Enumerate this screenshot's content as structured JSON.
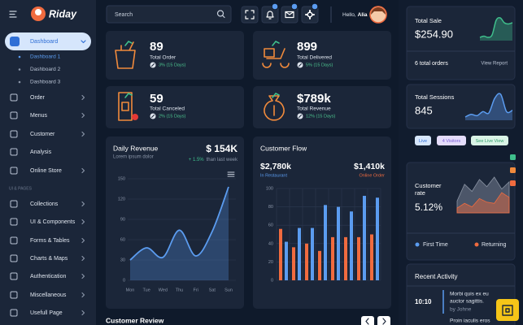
{
  "sidebar": {
    "logo": "Riday",
    "menu": [
      {
        "label": "Dashboard",
        "children": [
          "Dashboard 1",
          "Dashboard 2",
          "Dashboard 3"
        ],
        "has_submenu": true
      },
      {
        "label": "Order",
        "has_submenu": true
      },
      {
        "label": "Menus",
        "has_submenu": true
      },
      {
        "label": "Customer",
        "has_submenu": true
      },
      {
        "label": "Analysis",
        "has_submenu": false
      },
      {
        "label": "Online Store",
        "has_submenu": true
      }
    ],
    "section": "UI & PAGES",
    "pages": [
      "Collections",
      "UI & Components",
      "Forms & Tables",
      "Charts & Maps",
      "Authentication",
      "Miscellaneous",
      "Usefull Page"
    ]
  },
  "topbar": {
    "search": "Search",
    "greeting": "Hello,",
    "user": "Alia"
  },
  "stats": [
    {
      "value": 89,
      "label": "Total Order",
      "change": "3% (15 Days)"
    },
    {
      "value": 899,
      "label": "Total Delivered",
      "change": "5% (15 Days)"
    },
    {
      "value": 59,
      "label": "Total Canceled",
      "change": "2% (15 Days)"
    },
    {
      "value": "$789k",
      "label": "Total Revenue",
      "change": "12% (15 Days)"
    }
  ],
  "chart_data": [
    {
      "type": "line",
      "title": "Daily Revenue",
      "subtitle": "Lorem ipsum dolor",
      "total": "$ 154K",
      "change": "+ 1.5%",
      "change_note": "than last week",
      "categories": [
        "Mon",
        "Tue",
        "Wed",
        "Thu",
        "Fri",
        "Sat",
        "Sun"
      ],
      "values": [
        30,
        48,
        34,
        74,
        36,
        72,
        138
      ],
      "color": "#5b9cf0",
      "ylim": [
        0,
        150
      ],
      "yticks": [
        0,
        30,
        60,
        90,
        120,
        150
      ],
      "grid": true
    },
    {
      "type": "bar",
      "title": "Customer Flow",
      "series": [
        {
          "name": "In Restaurant",
          "total": "$2,780k",
          "color": "#5b9cf0",
          "values": [
            42,
            57,
            57,
            82,
            80,
            75,
            92,
            90
          ]
        },
        {
          "name": "Online Order",
          "total": "$1,410k",
          "color": "#f06b3f",
          "values": [
            56,
            36,
            40,
            32,
            47,
            47,
            47,
            50
          ]
        }
      ],
      "ylim": [
        0,
        100
      ],
      "yticks": [
        0,
        20,
        40,
        60,
        80,
        100
      ],
      "grid": true
    }
  ],
  "customer_review": {
    "title": "Customer Review"
  },
  "right_panel": {
    "total_sale": {
      "title": "Total Sale",
      "value": "$254.90",
      "orders": "6 total orders",
      "link": "View Report",
      "trend": [
        10,
        11,
        10,
        12,
        24,
        26,
        22,
        21,
        22
      ],
      "color": "#3fbf8c"
    },
    "total_sessions": {
      "title": "Total Sessions",
      "value": 845,
      "trend": [
        8,
        10,
        9,
        12,
        11,
        22,
        25,
        12,
        13
      ],
      "color": "#5b9cf0",
      "chips": [
        "Live",
        "4 Visitors",
        "See Live View"
      ]
    },
    "customer_rate": {
      "title": [
        "Customer",
        "rate"
      ],
      "value": "5.12%",
      "series": [
        {
          "name": "First Time",
          "color": "#5b9cf0",
          "chart_color": "#8a93a3",
          "values": [
            10,
            24,
            18,
            28,
            22,
            30,
            20,
            26
          ]
        },
        {
          "name": "Returning",
          "color": "#f06b3f",
          "chart_color": "#f06b3f",
          "values": [
            4,
            8,
            5,
            12,
            9,
            8,
            17,
            13
          ]
        }
      ]
    },
    "recent_activity": {
      "title": "Recent Activity",
      "items": [
        {
          "time": "10:10",
          "text": [
            "Morbi quis ex eu",
            "auctor sagittis."
          ],
          "author": "by Johne"
        },
        {
          "text": [
            "Proin iaculis eros"
          ]
        }
      ]
    }
  }
}
